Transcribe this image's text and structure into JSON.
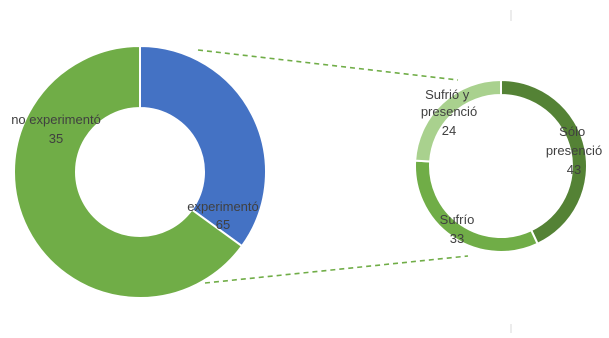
{
  "chart_data": [
    {
      "type": "pie",
      "variant": "donut",
      "title": "",
      "slices": [
        {
          "label": "no experimentó",
          "value": 35,
          "color": "#4472c4"
        },
        {
          "label": "experimentó",
          "value": 65,
          "color": "#70ad47"
        }
      ],
      "legend": "none"
    },
    {
      "type": "pie",
      "variant": "donut",
      "title": "",
      "breakdown_of": "experimentó",
      "slices": [
        {
          "label": "Sólo presenció",
          "value": 43,
          "color": "#548235"
        },
        {
          "label": "Sufrío",
          "value": 33,
          "color": "#70ad47"
        },
        {
          "label": "Sufrió y presenció",
          "value": 24,
          "color": "#a9d18e"
        }
      ],
      "legend": "none"
    }
  ]
}
